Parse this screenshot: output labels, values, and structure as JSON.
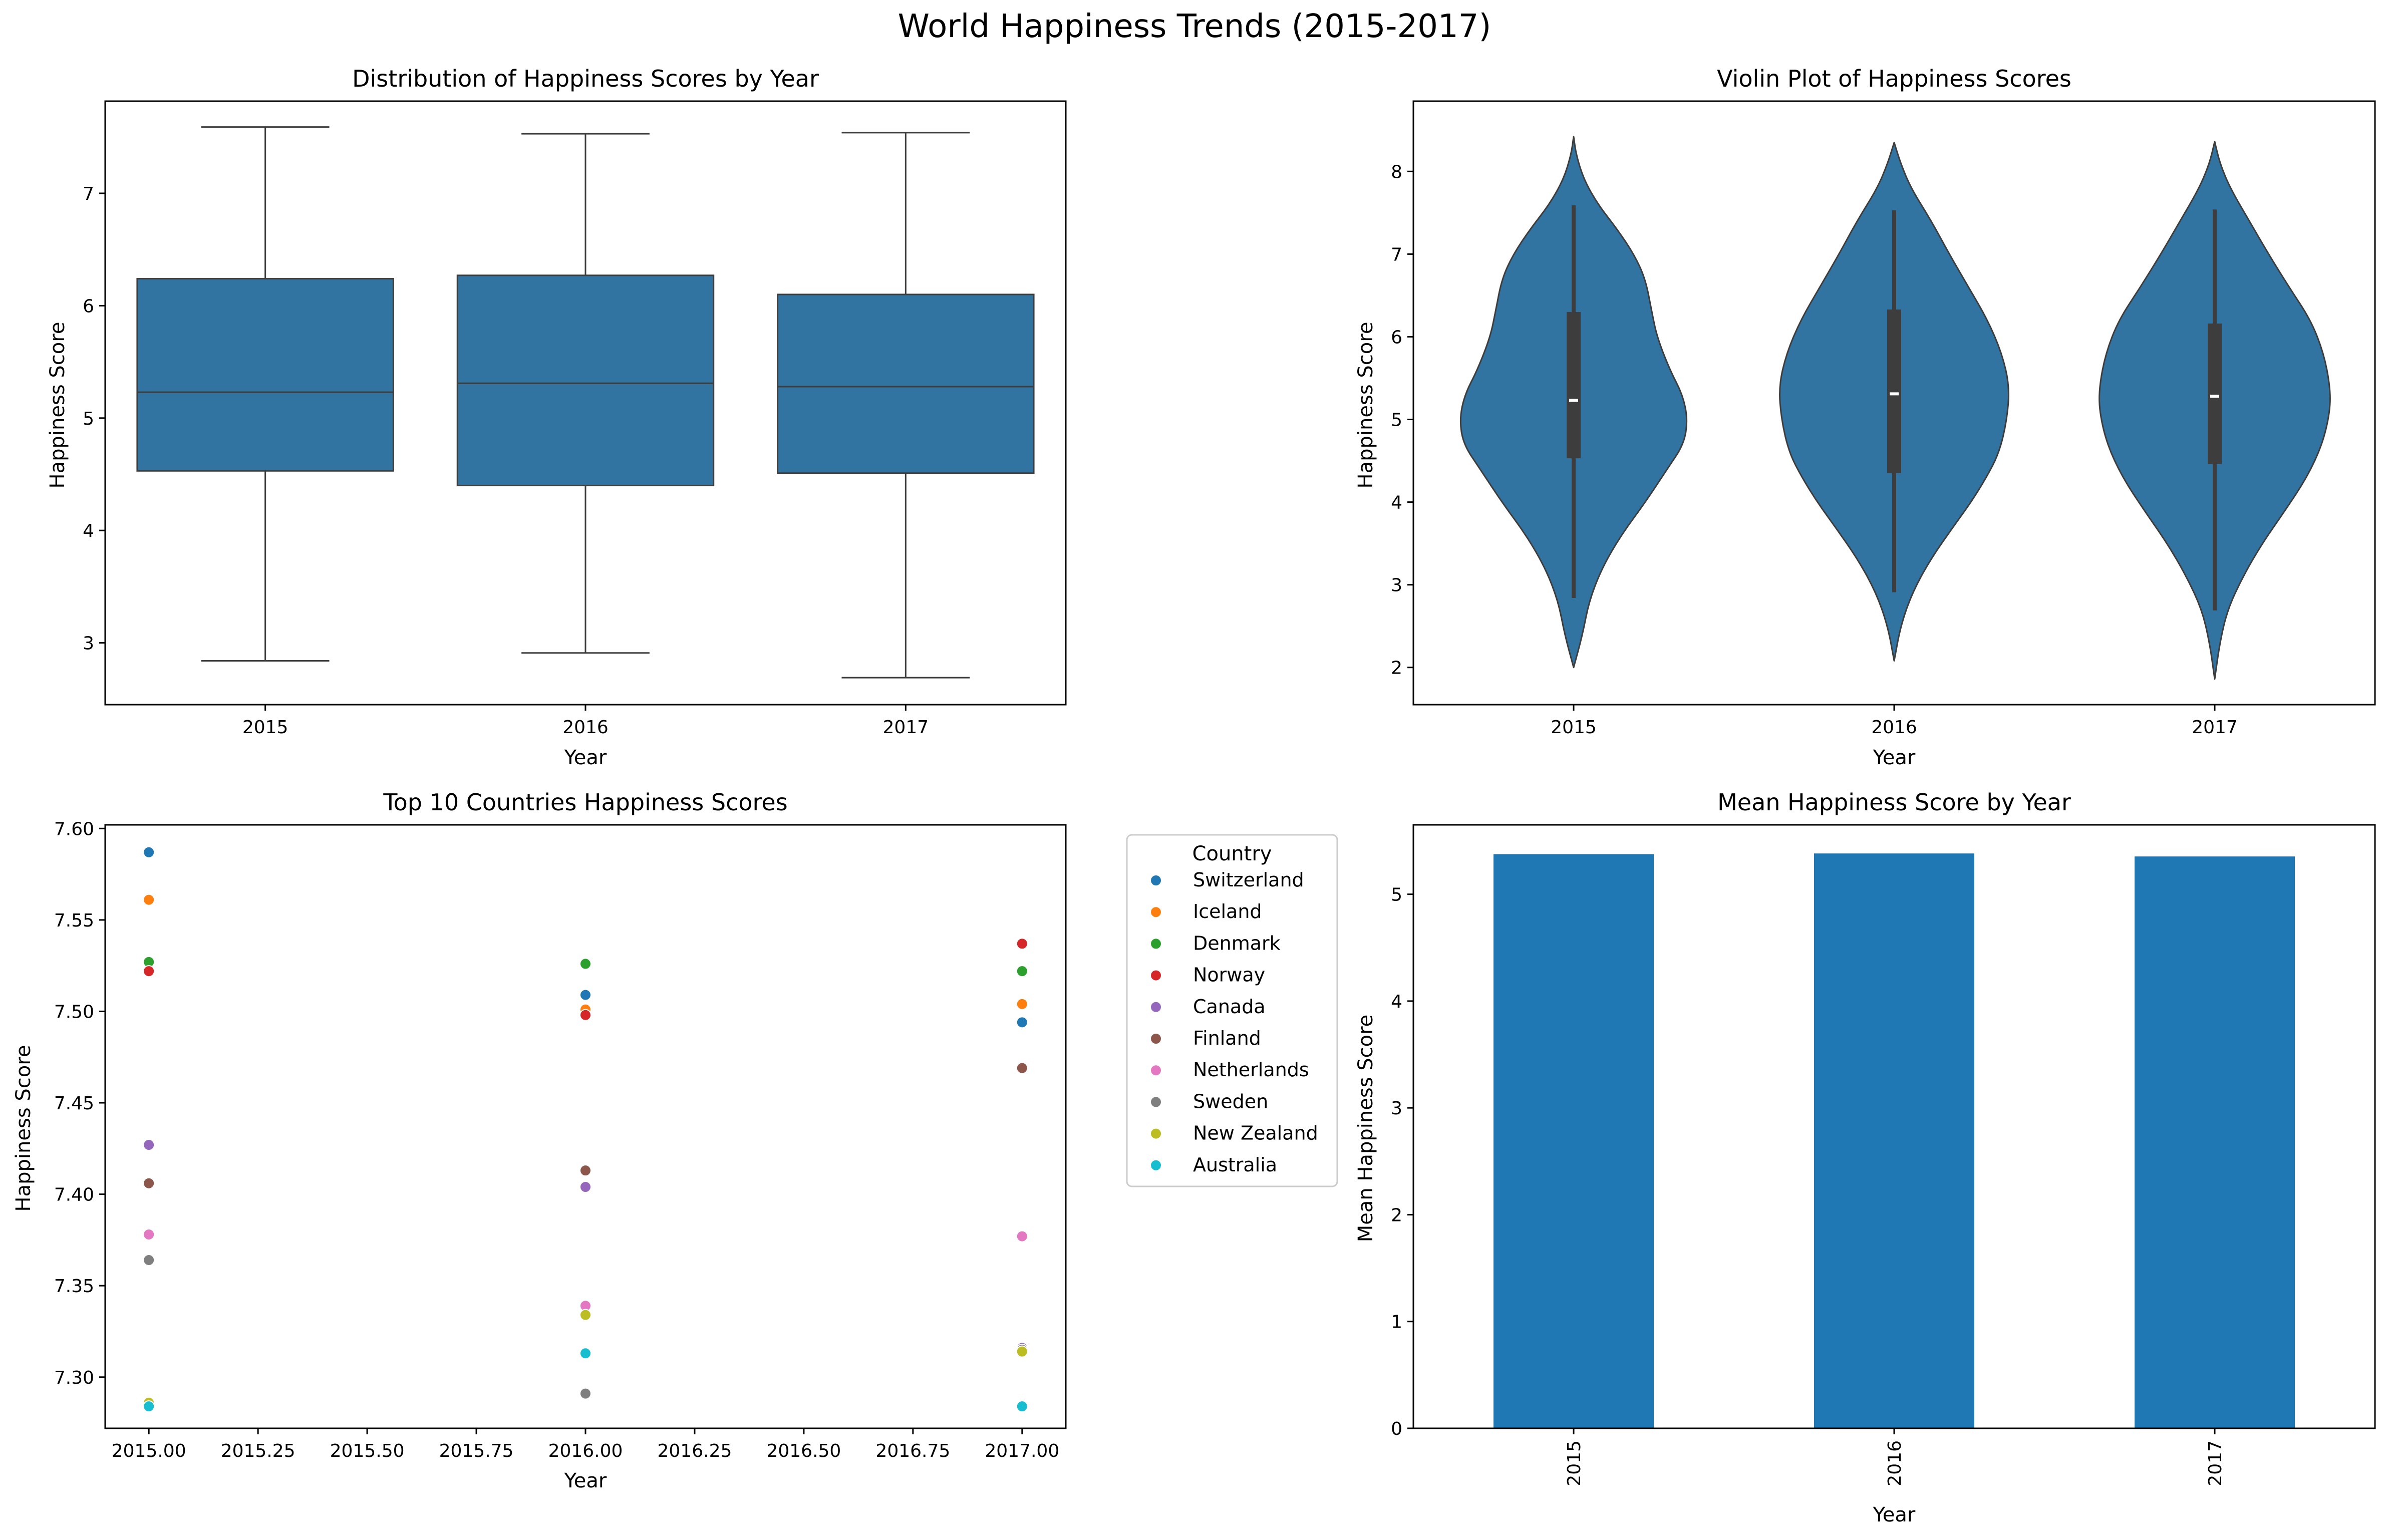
{
  "figure": {
    "suptitle": "World Happiness Trends (2015-2017)"
  },
  "colors": {
    "seaborn_blue": "#3274a1",
    "bar_blue": "#1f77b4",
    "median_line": "#3d3d3d",
    "violin_inner": "#3d3d3d"
  },
  "chart_data": [
    {
      "type": "box",
      "title": "Distribution of Happiness Scores by Year",
      "xlabel": "Year",
      "ylabel": "Happiness Score",
      "categories": [
        "2015",
        "2016",
        "2017"
      ],
      "ylim": [
        2.45,
        7.82
      ],
      "yticks": [
        3,
        4,
        5,
        6,
        7
      ],
      "boxes": [
        {
          "category": "2015",
          "whisker_low": 2.84,
          "q1": 4.53,
          "median": 5.23,
          "q3": 6.24,
          "whisker_high": 7.59
        },
        {
          "category": "2016",
          "whisker_low": 2.91,
          "q1": 4.4,
          "median": 5.31,
          "q3": 6.27,
          "whisker_high": 7.53
        },
        {
          "category": "2017",
          "whisker_low": 2.69,
          "q1": 4.51,
          "median": 5.28,
          "q3": 6.1,
          "whisker_high": 7.54
        }
      ]
    },
    {
      "type": "violin",
      "title": "Violin Plot of Happiness Scores",
      "xlabel": "Year",
      "ylabel": "Happiness Score",
      "categories": [
        "2015",
        "2016",
        "2017"
      ],
      "ylim": [
        1.55,
        8.85
      ],
      "yticks": [
        2,
        3,
        4,
        5,
        6,
        7,
        8
      ],
      "violins": [
        {
          "category": "2015",
          "q1": 4.53,
          "median": 5.23,
          "q3": 6.3,
          "whisker_low": 2.84,
          "whisker_high": 7.59,
          "density": [
            [
              2.0,
              0.0
            ],
            [
              2.4,
              0.07
            ],
            [
              2.8,
              0.12
            ],
            [
              3.2,
              0.22
            ],
            [
              3.6,
              0.37
            ],
            [
              4.0,
              0.56
            ],
            [
              4.4,
              0.73
            ],
            [
              4.7,
              0.86
            ],
            [
              5.0,
              0.89
            ],
            [
              5.3,
              0.85
            ],
            [
              5.6,
              0.75
            ],
            [
              6.0,
              0.65
            ],
            [
              6.3,
              0.61
            ],
            [
              6.7,
              0.56
            ],
            [
              7.0,
              0.47
            ],
            [
              7.3,
              0.34
            ],
            [
              7.6,
              0.19
            ],
            [
              7.9,
              0.08
            ],
            [
              8.2,
              0.02
            ],
            [
              8.42,
              0.0
            ]
          ]
        },
        {
          "category": "2016",
          "q1": 4.35,
          "median": 5.31,
          "q3": 6.33,
          "whisker_low": 2.91,
          "whisker_high": 7.53,
          "density": [
            [
              2.08,
              0.0
            ],
            [
              2.5,
              0.05
            ],
            [
              2.9,
              0.14
            ],
            [
              3.3,
              0.28
            ],
            [
              3.7,
              0.46
            ],
            [
              4.0,
              0.6
            ],
            [
              4.3,
              0.72
            ],
            [
              4.6,
              0.82
            ],
            [
              5.0,
              0.88
            ],
            [
              5.4,
              0.9
            ],
            [
              5.8,
              0.84
            ],
            [
              6.2,
              0.73
            ],
            [
              6.6,
              0.58
            ],
            [
              7.0,
              0.43
            ],
            [
              7.4,
              0.29
            ],
            [
              7.8,
              0.13
            ],
            [
              8.1,
              0.05
            ],
            [
              8.35,
              0.0
            ]
          ]
        },
        {
          "category": "2017",
          "q1": 4.46,
          "median": 5.28,
          "q3": 6.16,
          "whisker_low": 2.69,
          "whisker_high": 7.54,
          "density": [
            [
              1.86,
              0.0
            ],
            [
              2.3,
              0.04
            ],
            [
              2.7,
              0.1
            ],
            [
              3.1,
              0.22
            ],
            [
              3.5,
              0.37
            ],
            [
              3.9,
              0.55
            ],
            [
              4.3,
              0.72
            ],
            [
              4.7,
              0.84
            ],
            [
              5.1,
              0.9
            ],
            [
              5.4,
              0.9
            ],
            [
              5.8,
              0.85
            ],
            [
              6.2,
              0.75
            ],
            [
              6.6,
              0.58
            ],
            [
              7.0,
              0.42
            ],
            [
              7.4,
              0.27
            ],
            [
              7.8,
              0.12
            ],
            [
              8.1,
              0.04
            ],
            [
              8.36,
              0.0
            ]
          ]
        }
      ]
    },
    {
      "type": "scatter",
      "title": "Top 10 Countries Happiness Scores",
      "xlabel": "Year",
      "ylabel": "Happiness Score",
      "xlim": [
        1999.9,
        2017.1
      ],
      "xticks": [
        2015.0,
        2015.25,
        2015.5,
        2015.75,
        2016.0,
        2016.25,
        2016.5,
        2016.75,
        2017.0
      ],
      "xtick_labels": [
        "2015.00",
        "2015.25",
        "2015.50",
        "2015.75",
        "2016.00",
        "2016.25",
        "2016.50",
        "2016.75",
        "2017.00"
      ],
      "ylim": [
        7.272,
        7.602
      ],
      "yticks": [
        7.3,
        7.35,
        7.4,
        7.45,
        7.5,
        7.55,
        7.6
      ],
      "ytick_labels": [
        "7.30",
        "7.35",
        "7.40",
        "7.45",
        "7.50",
        "7.55",
        "7.60"
      ],
      "legend_title": "Country",
      "legend_placement": "outside-right",
      "series": [
        {
          "name": "Switzerland",
          "color": "#1f77b4",
          "points": [
            [
              2015,
              7.587
            ],
            [
              2016,
              7.509
            ],
            [
              2017,
              7.494
            ]
          ]
        },
        {
          "name": "Iceland",
          "color": "#ff7f0e",
          "points": [
            [
              2015,
              7.561
            ],
            [
              2016,
              7.501
            ],
            [
              2017,
              7.504
            ]
          ]
        },
        {
          "name": "Denmark",
          "color": "#2ca02c",
          "points": [
            [
              2015,
              7.527
            ],
            [
              2016,
              7.526
            ],
            [
              2017,
              7.522
            ]
          ]
        },
        {
          "name": "Norway",
          "color": "#d62728",
          "points": [
            [
              2015,
              7.522
            ],
            [
              2016,
              7.498
            ],
            [
              2017,
              7.537
            ]
          ]
        },
        {
          "name": "Canada",
          "color": "#9467bd",
          "points": [
            [
              2015,
              7.427
            ],
            [
              2016,
              7.404
            ],
            [
              2017,
              7.316
            ]
          ]
        },
        {
          "name": "Finland",
          "color": "#8c564b",
          "points": [
            [
              2015,
              7.406
            ],
            [
              2016,
              7.413
            ],
            [
              2017,
              7.469
            ]
          ]
        },
        {
          "name": "Netherlands",
          "color": "#e377c2",
          "points": [
            [
              2015,
              7.378
            ],
            [
              2016,
              7.339
            ],
            [
              2017,
              7.377
            ]
          ]
        },
        {
          "name": "Sweden",
          "color": "#7f7f7f",
          "points": [
            [
              2015,
              7.364
            ],
            [
              2016,
              7.291
            ],
            [
              2017,
              7.315
            ]
          ]
        },
        {
          "name": "New Zealand",
          "color": "#bcbd22",
          "points": [
            [
              2015,
              7.286
            ],
            [
              2016,
              7.334
            ],
            [
              2017,
              7.314
            ]
          ]
        },
        {
          "name": "Australia",
          "color": "#17becf",
          "points": [
            [
              2015,
              7.284
            ],
            [
              2016,
              7.313
            ],
            [
              2017,
              7.284
            ]
          ]
        }
      ]
    },
    {
      "type": "bar",
      "title": "Mean Happiness Score by Year",
      "xlabel": "Year",
      "ylabel": "Mean Happiness Score",
      "categories": [
        "2015",
        "2016",
        "2017"
      ],
      "values": [
        5.376,
        5.382,
        5.354
      ],
      "ylim": [
        0,
        5.65
      ],
      "yticks": [
        0,
        1,
        2,
        3,
        4,
        5
      ],
      "xtick_rotation": 90
    }
  ]
}
